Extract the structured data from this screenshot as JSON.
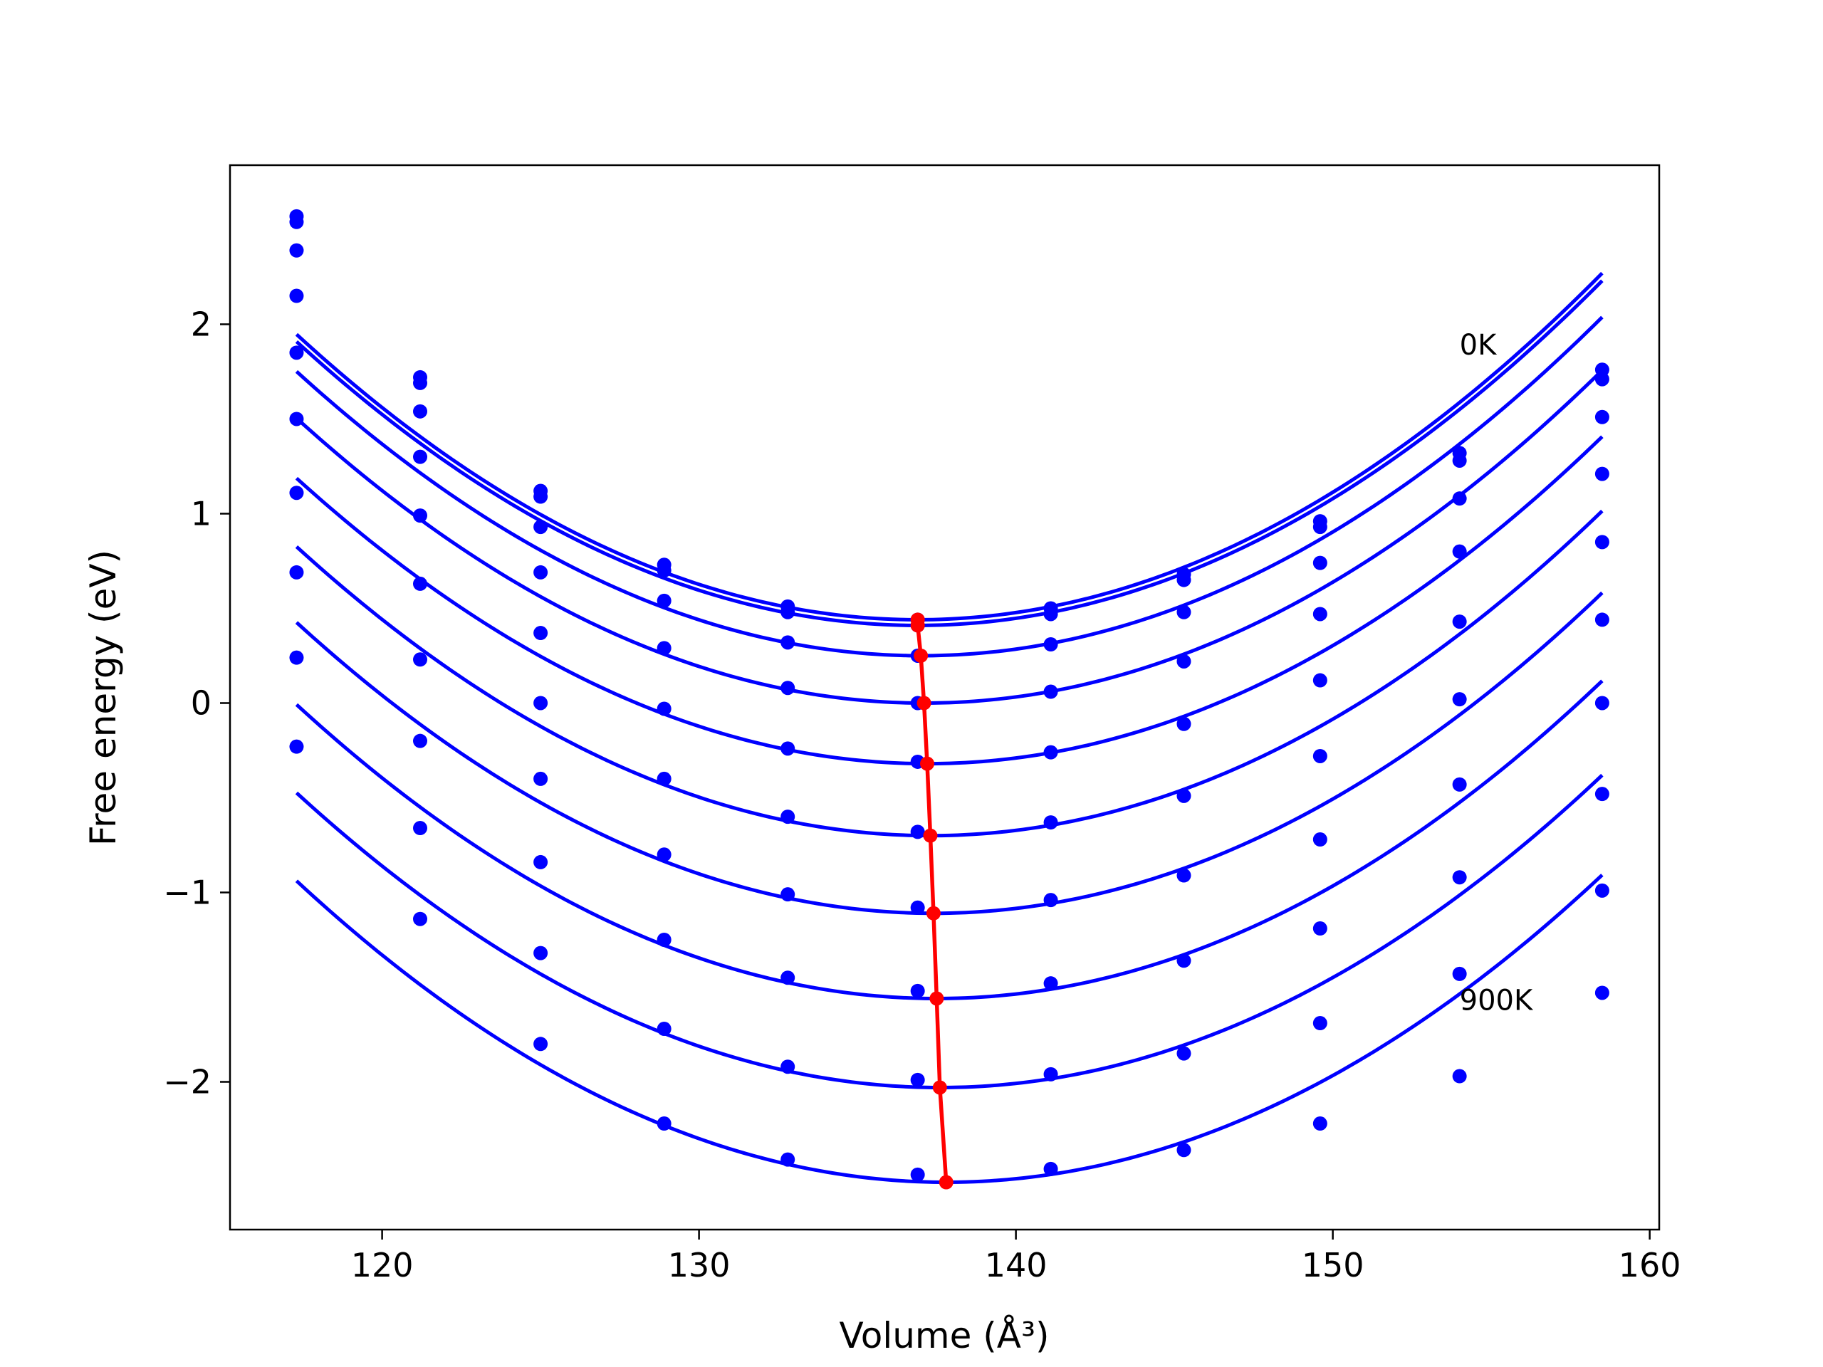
{
  "chart_data": {
    "type": "line",
    "xlabel": "Volume (Å³)",
    "ylabel": "Free energy (eV)",
    "xlim": [
      115.2,
      160.3
    ],
    "ylim": [
      -2.78,
      2.84
    ],
    "xticks": [
      120,
      130,
      140,
      150,
      160
    ],
    "xtick_labels": [
      "120",
      "130",
      "140",
      "150",
      "160"
    ],
    "yticks": [
      -2,
      -1,
      0,
      1,
      2
    ],
    "ytick_labels": [
      "−2",
      "−1",
      "0",
      "1",
      "2"
    ],
    "grid": false,
    "volumes": [
      117.3,
      121.2,
      125.0,
      128.9,
      132.8,
      136.9,
      141.1,
      145.3,
      149.6,
      154.0,
      158.5
    ],
    "series": [
      {
        "color": "#0000ff",
        "fit": {
          "vmin": 136.9,
          "fmin": 0.44
        },
        "values": [
          2.57,
          1.72,
          1.12,
          0.73,
          0.51,
          0.44,
          0.5,
          0.68,
          0.96,
          1.32,
          1.76
        ]
      },
      {
        "color": "#0000ff",
        "fit": {
          "vmin": 136.9,
          "fmin": 0.41
        },
        "values": [
          2.54,
          1.69,
          1.09,
          0.7,
          0.48,
          0.41,
          0.47,
          0.65,
          0.93,
          1.28,
          1.71
        ]
      },
      {
        "color": "#0000ff",
        "fit": {
          "vmin": 137.0,
          "fmin": 0.25
        },
        "values": [
          2.39,
          1.54,
          0.93,
          0.54,
          0.32,
          0.25,
          0.31,
          0.48,
          0.74,
          1.08,
          1.51
        ]
      },
      {
        "color": "#0000ff",
        "fit": {
          "vmin": 137.1,
          "fmin": 0.0
        },
        "values": [
          2.15,
          1.3,
          0.69,
          0.29,
          0.08,
          0.0,
          0.06,
          0.22,
          0.47,
          0.8,
          1.21
        ]
      },
      {
        "color": "#0000ff",
        "fit": {
          "vmin": 137.2,
          "fmin": -0.32
        },
        "values": [
          1.85,
          0.99,
          0.37,
          -0.03,
          -0.24,
          -0.31,
          -0.26,
          -0.11,
          0.12,
          0.43,
          0.85
        ]
      },
      {
        "color": "#0000ff",
        "fit": {
          "vmin": 137.3,
          "fmin": -0.7
        },
        "values": [
          1.5,
          0.63,
          0.0,
          -0.4,
          -0.6,
          -0.68,
          -0.63,
          -0.49,
          -0.28,
          0.02,
          0.44
        ]
      },
      {
        "color": "#0000ff",
        "fit": {
          "vmin": 137.4,
          "fmin": -1.11
        },
        "values": [
          1.11,
          0.23,
          -0.4,
          -0.8,
          -1.01,
          -1.08,
          -1.04,
          -0.91,
          -0.72,
          -0.43,
          0.0
        ]
      },
      {
        "color": "#0000ff",
        "fit": {
          "vmin": 137.5,
          "fmin": -1.56
        },
        "values": [
          0.69,
          -0.2,
          -0.84,
          -1.25,
          -1.45,
          -1.52,
          -1.48,
          -1.36,
          -1.19,
          -0.92,
          -0.48
        ]
      },
      {
        "color": "#0000ff",
        "fit": {
          "vmin": 137.6,
          "fmin": -2.03
        },
        "values": [
          0.24,
          -0.66,
          -1.32,
          -1.72,
          -1.92,
          -1.99,
          -1.96,
          -1.85,
          -1.69,
          -1.43,
          -0.99
        ]
      },
      {
        "color": "#0000ff",
        "fit": {
          "vmin": 137.8,
          "fmin": -2.53
        },
        "values": [
          -0.23,
          -1.14,
          -1.8,
          -2.22,
          -2.41,
          -2.49,
          -2.46,
          -2.36,
          -2.22,
          -1.97,
          -1.53
        ]
      }
    ],
    "minima": {
      "color": "#ff0000",
      "x": [
        136.9,
        136.9,
        137.0,
        137.1,
        137.2,
        137.3,
        137.4,
        137.5,
        137.6,
        137.8
      ],
      "y": [
        0.44,
        0.41,
        0.25,
        0.0,
        -0.32,
        -0.7,
        -1.11,
        -1.56,
        -2.03,
        -2.53
      ]
    },
    "annotations": [
      {
        "text": "0K",
        "x": 154.0,
        "y": 1.84
      },
      {
        "text": "900K",
        "x": 154.0,
        "y": -1.62
      }
    ]
  }
}
